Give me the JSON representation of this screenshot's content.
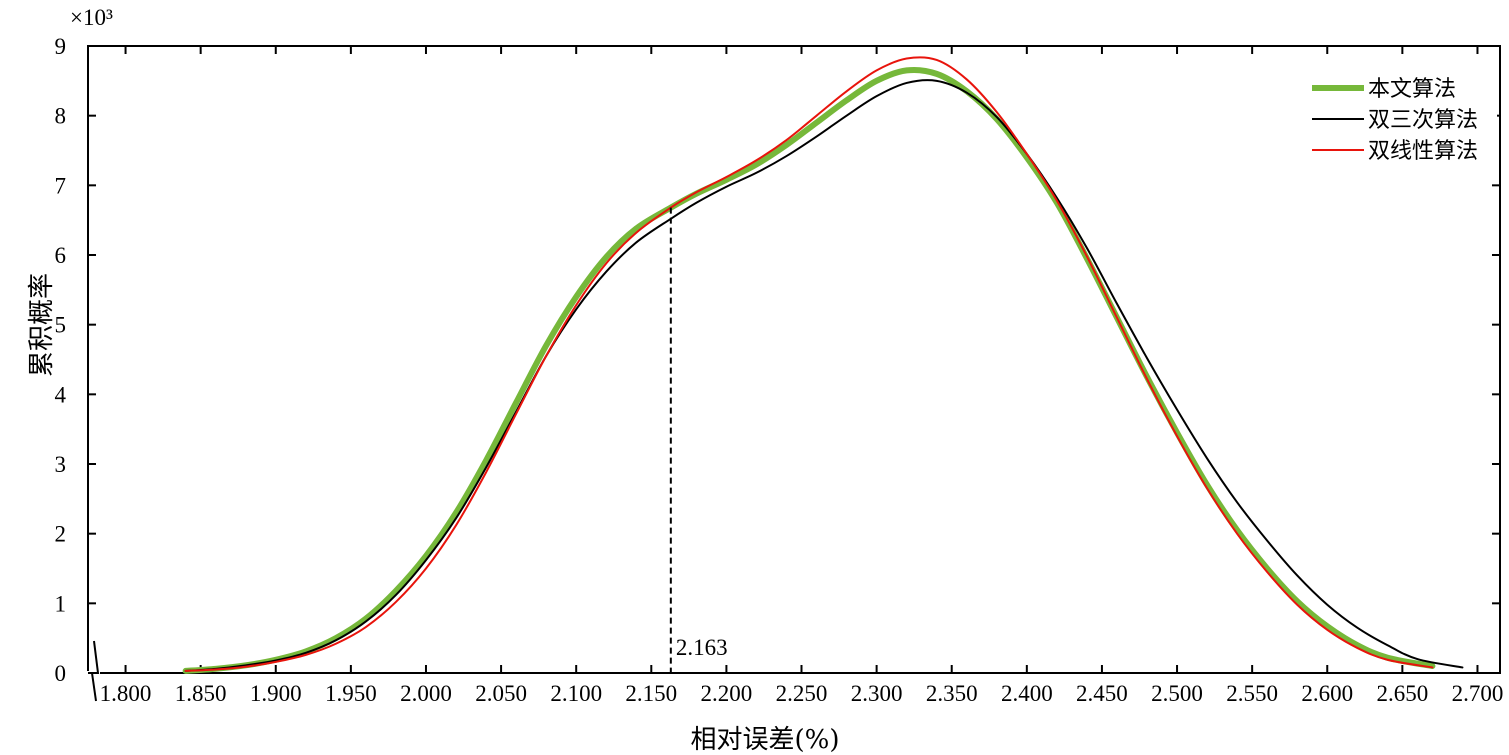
{
  "chart_data": {
    "type": "line",
    "xlabel": "相对误差(%)",
    "ylabel": "累积概率",
    "y_multiplier": "×10³",
    "xlim": [
      1.775,
      2.715
    ],
    "ylim": [
      0,
      9
    ],
    "x_ticks": [
      "1.800",
      "1.850",
      "1.900",
      "1.950",
      "2.000",
      "2.050",
      "2.100",
      "2.150",
      "2.200",
      "2.250",
      "2.300",
      "2.350",
      "2.400",
      "2.450",
      "2.500",
      "2.550",
      "2.600",
      "2.650",
      "2.700"
    ],
    "y_ticks": [
      "0",
      "1",
      "2",
      "3",
      "4",
      "5",
      "6",
      "7",
      "8",
      "9"
    ],
    "axis_break": true,
    "legend_position": "top-right",
    "annotation": {
      "x": 2.163,
      "y": 6.68,
      "text": "2.163"
    },
    "series": [
      {
        "name": "本文算法",
        "color": "#76b83a",
        "x": [
          1.84,
          1.86,
          1.88,
          1.9,
          1.92,
          1.94,
          1.96,
          1.98,
          2.0,
          2.02,
          2.04,
          2.06,
          2.08,
          2.1,
          2.12,
          2.14,
          2.163,
          2.18,
          2.2,
          2.22,
          2.24,
          2.26,
          2.28,
          2.3,
          2.32,
          2.34,
          2.36,
          2.38,
          2.4,
          2.42,
          2.44,
          2.46,
          2.48,
          2.5,
          2.52,
          2.54,
          2.56,
          2.58,
          2.6,
          2.62,
          2.64,
          2.67
        ],
        "y": [
          0.03,
          0.06,
          0.11,
          0.19,
          0.31,
          0.5,
          0.78,
          1.18,
          1.68,
          2.3,
          3.05,
          3.88,
          4.7,
          5.4,
          5.97,
          6.38,
          6.68,
          6.88,
          7.08,
          7.3,
          7.58,
          7.9,
          8.22,
          8.5,
          8.65,
          8.6,
          8.35,
          7.95,
          7.4,
          6.75,
          5.95,
          5.1,
          4.25,
          3.45,
          2.7,
          2.05,
          1.5,
          1.03,
          0.67,
          0.4,
          0.22,
          0.1
        ]
      },
      {
        "name": "双三次算法",
        "color": "#000000",
        "x": [
          1.84,
          1.86,
          1.88,
          1.9,
          1.92,
          1.94,
          1.96,
          1.98,
          2.0,
          2.02,
          2.04,
          2.06,
          2.08,
          2.1,
          2.12,
          2.14,
          2.163,
          2.18,
          2.2,
          2.22,
          2.24,
          2.26,
          2.28,
          2.3,
          2.32,
          2.34,
          2.36,
          2.38,
          2.4,
          2.42,
          2.44,
          2.46,
          2.48,
          2.5,
          2.52,
          2.54,
          2.56,
          2.58,
          2.6,
          2.62,
          2.64,
          2.66,
          2.69
        ],
        "y": [
          0.03,
          0.06,
          0.11,
          0.18,
          0.29,
          0.47,
          0.74,
          1.12,
          1.62,
          2.22,
          2.95,
          3.75,
          4.55,
          5.22,
          5.76,
          6.18,
          6.52,
          6.75,
          6.98,
          7.18,
          7.42,
          7.7,
          8.0,
          8.28,
          8.47,
          8.5,
          8.33,
          7.98,
          7.45,
          6.82,
          6.1,
          5.3,
          4.52,
          3.78,
          3.08,
          2.45,
          1.9,
          1.4,
          0.98,
          0.65,
          0.4,
          0.2,
          0.08
        ]
      },
      {
        "name": "双线性算法",
        "color": "#e8140c",
        "x": [
          1.84,
          1.86,
          1.88,
          1.9,
          1.92,
          1.94,
          1.96,
          1.98,
          2.0,
          2.02,
          2.04,
          2.06,
          2.08,
          2.1,
          2.12,
          2.14,
          2.163,
          2.18,
          2.2,
          2.22,
          2.24,
          2.26,
          2.28,
          2.3,
          2.32,
          2.34,
          2.36,
          2.38,
          2.4,
          2.42,
          2.44,
          2.46,
          2.48,
          2.5,
          2.52,
          2.54,
          2.56,
          2.58,
          2.6,
          2.62,
          2.64,
          2.67
        ],
        "y": [
          0.03,
          0.05,
          0.09,
          0.16,
          0.26,
          0.42,
          0.66,
          1.02,
          1.5,
          2.12,
          2.88,
          3.72,
          4.55,
          5.28,
          5.88,
          6.32,
          6.68,
          6.9,
          7.12,
          7.36,
          7.65,
          8.0,
          8.35,
          8.65,
          8.82,
          8.8,
          8.52,
          8.05,
          7.45,
          6.78,
          5.98,
          5.1,
          4.22,
          3.4,
          2.65,
          2.0,
          1.45,
          0.98,
          0.62,
          0.36,
          0.19,
          0.08
        ]
      }
    ]
  }
}
